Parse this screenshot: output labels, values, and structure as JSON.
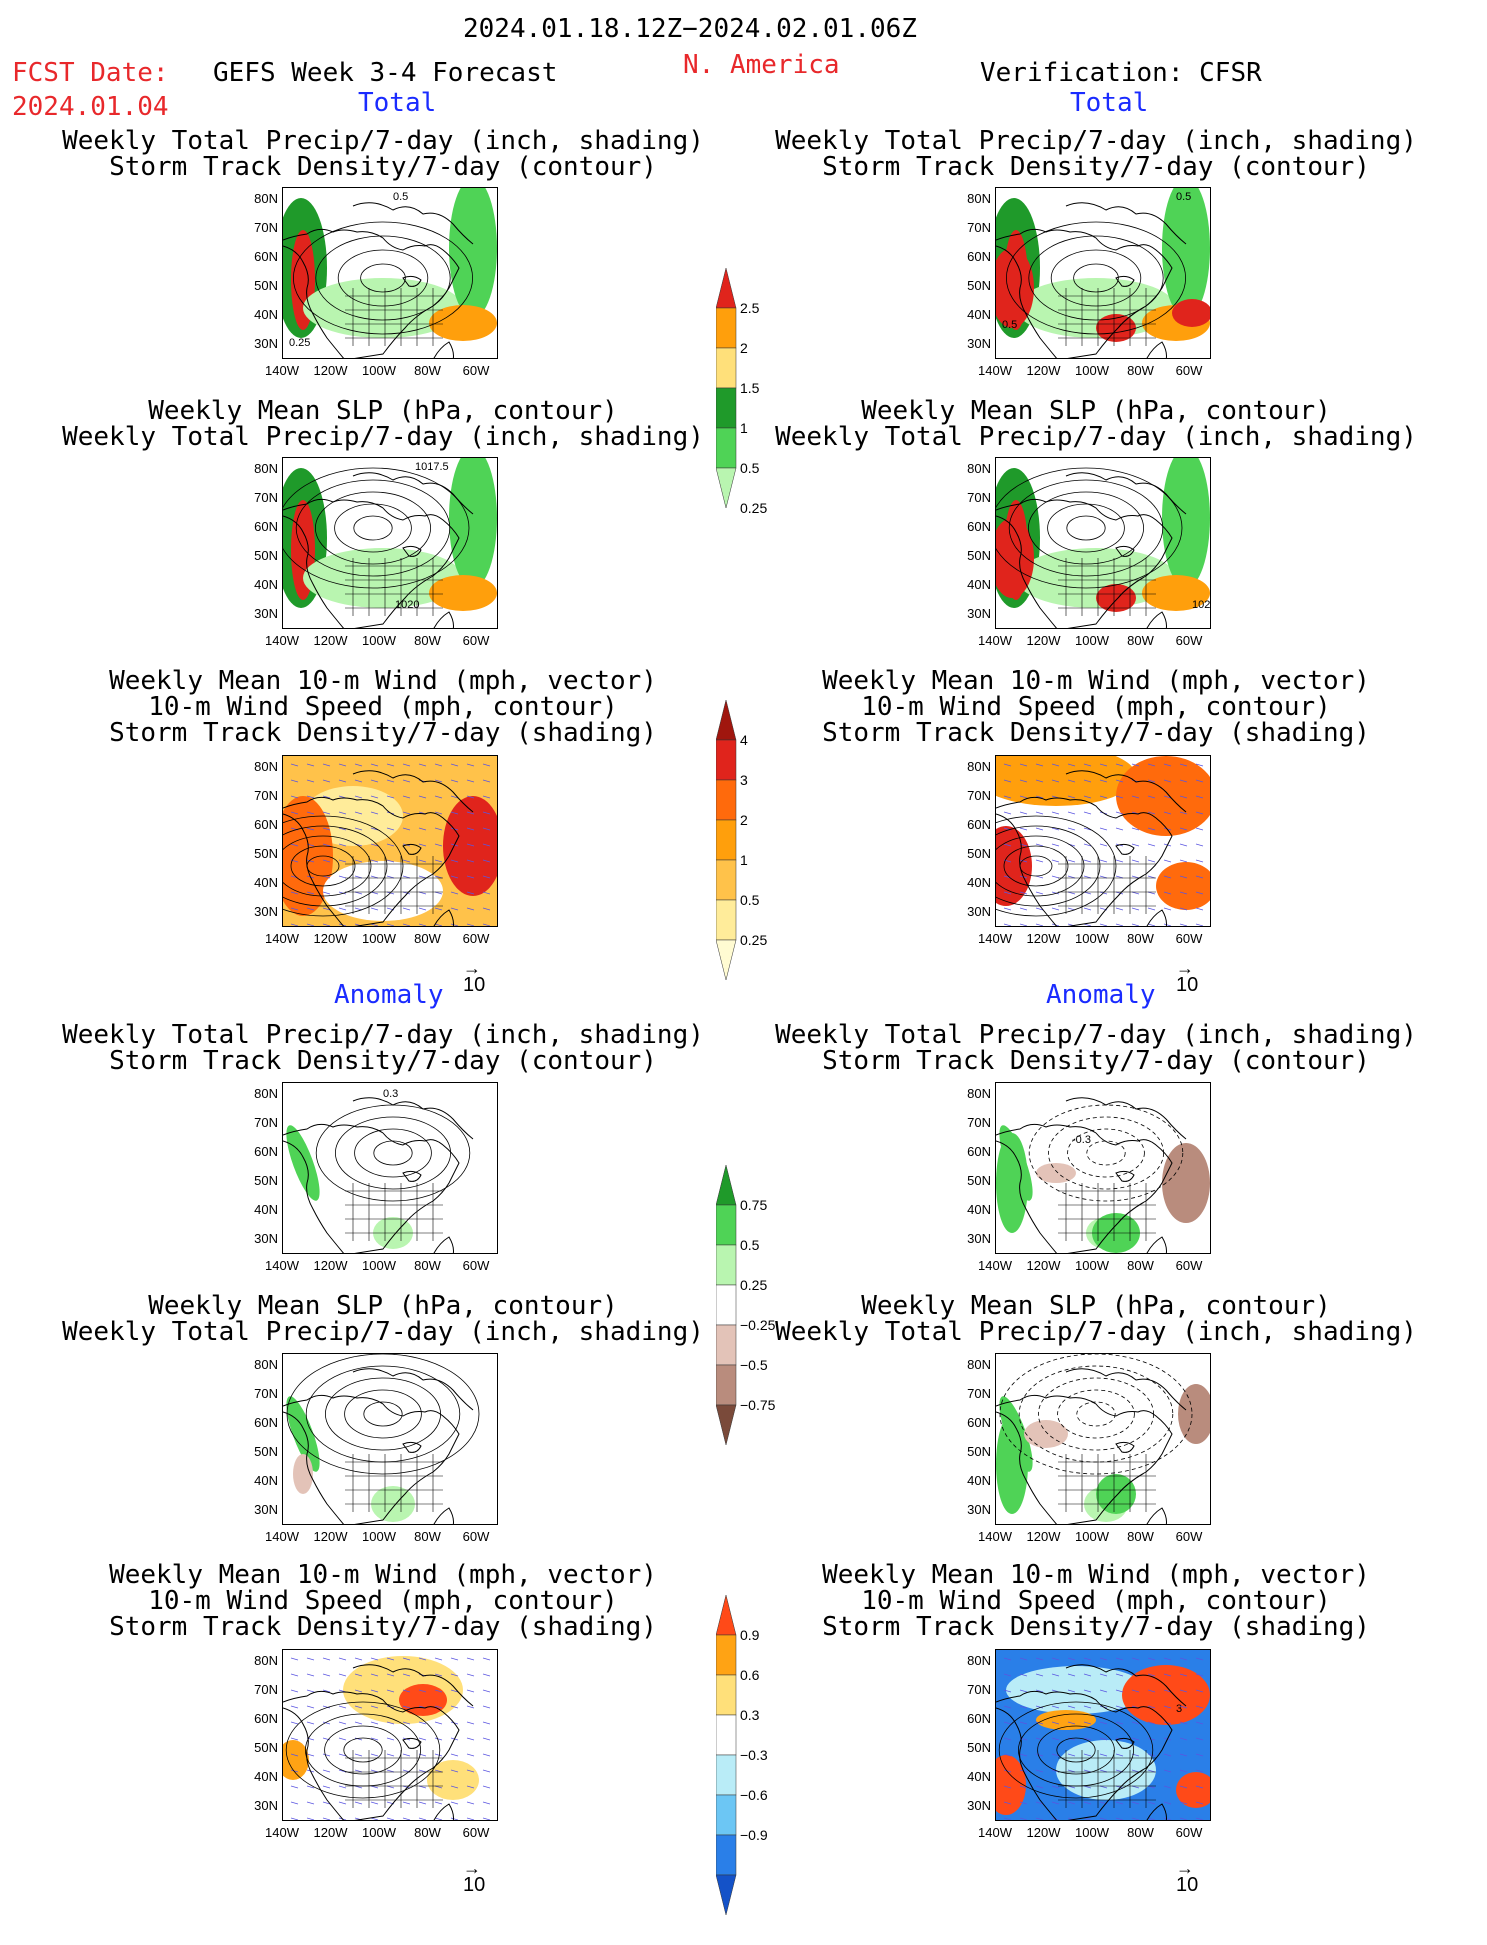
{
  "header": {
    "date_range": "2024.01.18.12Z−2024.02.01.06Z",
    "fcst_label": "FCST Date:",
    "fcst_date": "2024.01.04",
    "forecast_name": "GEFS Week 3-4 Forecast",
    "region": "N. America",
    "verification": "Verification: CFSR"
  },
  "sections": {
    "total": "Total",
    "anomaly": "Anomaly"
  },
  "panel_titles": {
    "precip_storm": [
      "Weekly Total Precip/7-day (inch, shading)",
      "Storm Track Density/7-day (contour)"
    ],
    "slp_precip": [
      "Weekly Mean SLP (hPa, contour)",
      "Weekly Total Precip/7-day (inch, shading)"
    ],
    "wind_storm": [
      "Weekly Mean 10-m Wind (mph, vector)",
      "10-m Wind Speed (mph, contour)",
      "Storm Track Density/7-day (shading)"
    ]
  },
  "axes": {
    "y": [
      "80N",
      "70N",
      "60N",
      "50N",
      "40N",
      "30N"
    ],
    "x": [
      "140W",
      "120W",
      "100W",
      "80W",
      "60W"
    ]
  },
  "vector_ref": "10",
  "contour_labels": {
    "r1_left": [
      "0.5",
      "0.25"
    ],
    "r1_right": [
      "0.5",
      "0.5"
    ],
    "r2_left": [
      "1017.5",
      "1020"
    ],
    "r2_right": [
      "102"
    ],
    "r4_left": [
      "0.3"
    ],
    "r4_right": [
      "-0.3"
    ],
    "r6_right": [
      "3"
    ]
  },
  "colorbars": {
    "precip_total": {
      "labels": [
        "2.5",
        "2",
        "1.5",
        "1",
        "0.5",
        "0.25"
      ],
      "colors": [
        "#e0241c",
        "#ff9f0c",
        "#ffe07a",
        "#1f9a2a",
        "#4fd356",
        "#b9f5b0"
      ]
    },
    "storm_total": {
      "labels": [
        "4",
        "3",
        "2",
        "1",
        "0.5",
        "0.25"
      ],
      "colors": [
        "#a0160e",
        "#e0241c",
        "#ff6a0c",
        "#ff9f0c",
        "#ffc24a",
        "#ffec9a",
        "#fffbd2"
      ]
    },
    "precip_anom": {
      "labels": [
        "0.75",
        "0.5",
        "0.25",
        "−0.25",
        "−0.5",
        "−0.75"
      ],
      "colors": [
        "#1f9a2a",
        "#4fd356",
        "#b9f5b0",
        "#ffffff",
        "#e3c3b8",
        "#b98c7d",
        "#7a4a3a"
      ]
    },
    "storm_anom": {
      "labels": [
        "0.9",
        "0.6",
        "0.3",
        "−0.3",
        "−0.6",
        "−0.9"
      ],
      "colors": [
        "#ff4a18",
        "#ffa314",
        "#ffe07a",
        "#ffffff",
        "#b9ecf7",
        "#6cc6f4",
        "#2a7fe8",
        "#1452c8"
      ]
    }
  }
}
